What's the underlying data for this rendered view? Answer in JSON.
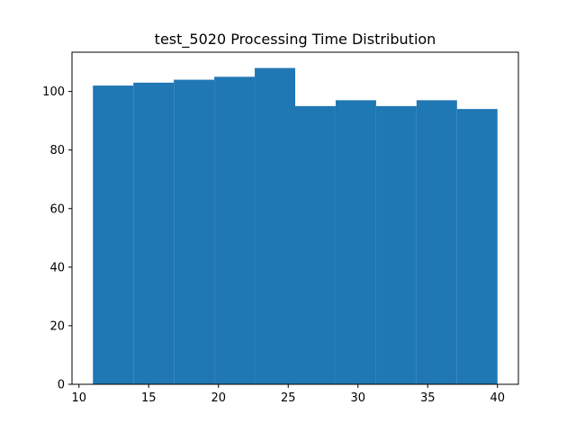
{
  "chart_data": {
    "type": "bar",
    "title": "test_5020 Processing Time Distribution",
    "xlabel": "",
    "ylabel": "",
    "bar_color": "#1f77b4",
    "xlim": [
      9.5,
      41.5
    ],
    "ylim": [
      0,
      113.4
    ],
    "x_ticks": [
      10,
      15,
      20,
      25,
      30,
      35,
      40
    ],
    "y_ticks": [
      0,
      20,
      40,
      60,
      80,
      100
    ],
    "bins": [
      {
        "start": 11.0,
        "end": 13.9,
        "count": 102
      },
      {
        "start": 13.9,
        "end": 16.8,
        "count": 103
      },
      {
        "start": 16.8,
        "end": 19.7,
        "count": 104
      },
      {
        "start": 19.7,
        "end": 22.6,
        "count": 105
      },
      {
        "start": 22.6,
        "end": 25.5,
        "count": 108
      },
      {
        "start": 25.5,
        "end": 28.4,
        "count": 95
      },
      {
        "start": 28.4,
        "end": 31.3,
        "count": 97
      },
      {
        "start": 31.3,
        "end": 34.2,
        "count": 95
      },
      {
        "start": 34.2,
        "end": 37.1,
        "count": 97
      },
      {
        "start": 37.1,
        "end": 40.0,
        "count": 94
      }
    ]
  }
}
